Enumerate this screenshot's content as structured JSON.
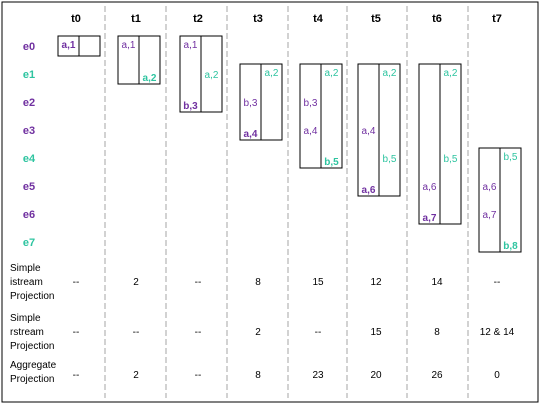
{
  "colors": {
    "purple": "#7030a0",
    "green": "#2ec4a0",
    "grid": "#a6a6a6",
    "border": "#000000"
  },
  "columns": [
    "t0",
    "t1",
    "t2",
    "t3",
    "t4",
    "t5",
    "t6",
    "t7"
  ],
  "events": [
    {
      "label": "e0",
      "color": "purple"
    },
    {
      "label": "e1",
      "color": "green"
    },
    {
      "label": "e2",
      "color": "purple"
    },
    {
      "label": "e3",
      "color": "purple"
    },
    {
      "label": "e4",
      "color": "green"
    },
    {
      "label": "e5",
      "color": "purple"
    },
    {
      "label": "e6",
      "color": "purple"
    },
    {
      "label": "e7",
      "color": "green"
    }
  ],
  "windows": [
    {
      "col": 0,
      "stream": "a",
      "start": 0,
      "end": 0,
      "entries": [
        {
          "event": 0,
          "text": "a,1",
          "bold": true
        }
      ]
    },
    {
      "col": 0,
      "stream": "b",
      "start": 0,
      "end": 0,
      "entries": []
    },
    {
      "col": 1,
      "stream": "a",
      "start": 0,
      "end": 1,
      "entries": [
        {
          "event": 0,
          "text": "a,1",
          "bold": false
        }
      ]
    },
    {
      "col": 1,
      "stream": "b",
      "start": 0,
      "end": 1,
      "entries": [
        {
          "event": 1,
          "text": "a,2",
          "bold": true
        }
      ]
    },
    {
      "col": 2,
      "stream": "a",
      "start": 0,
      "end": 2,
      "entries": [
        {
          "event": 0,
          "text": "a,1",
          "bold": false
        },
        {
          "event": 2,
          "text": "b,3",
          "bold": true
        }
      ]
    },
    {
      "col": 2,
      "stream": "b",
      "start": 0,
      "end": 2,
      "entries": [
        {
          "event": 1,
          "text": "a,2",
          "bold": false
        }
      ]
    },
    {
      "col": 3,
      "stream": "a",
      "start": 1,
      "end": 3,
      "entries": [
        {
          "event": 2,
          "text": "b,3",
          "bold": false
        },
        {
          "event": 3,
          "text": "a,4",
          "bold": true
        }
      ]
    },
    {
      "col": 3,
      "stream": "b",
      "start": 1,
      "end": 3,
      "entries": [
        {
          "event": 1,
          "text": "a,2",
          "bold": false
        }
      ]
    },
    {
      "col": 4,
      "stream": "a",
      "start": 1,
      "end": 4,
      "entries": [
        {
          "event": 2,
          "text": "b,3",
          "bold": false
        },
        {
          "event": 3,
          "text": "a,4",
          "bold": false
        }
      ]
    },
    {
      "col": 4,
      "stream": "b",
      "start": 1,
      "end": 4,
      "entries": [
        {
          "event": 1,
          "text": "a,2",
          "bold": false
        },
        {
          "event": 4,
          "text": "b,5",
          "bold": true
        }
      ]
    },
    {
      "col": 5,
      "stream": "a",
      "start": 1,
      "end": 5,
      "entries": [
        {
          "event": 3,
          "text": "a,4",
          "bold": false
        },
        {
          "event": 5,
          "text": "a,6",
          "bold": true
        }
      ]
    },
    {
      "col": 5,
      "stream": "b",
      "start": 1,
      "end": 5,
      "entries": [
        {
          "event": 1,
          "text": "a,2",
          "bold": false
        },
        {
          "event": 4,
          "text": "b,5",
          "bold": false
        }
      ]
    },
    {
      "col": 6,
      "stream": "a",
      "start": 1,
      "end": 6,
      "entries": [
        {
          "event": 5,
          "text": "a,6",
          "bold": false
        },
        {
          "event": 6,
          "text": "a,7",
          "bold": true
        }
      ]
    },
    {
      "col": 6,
      "stream": "b",
      "start": 1,
      "end": 6,
      "entries": [
        {
          "event": 1,
          "text": "a,2",
          "bold": false
        },
        {
          "event": 4,
          "text": "b,5",
          "bold": false
        }
      ]
    },
    {
      "col": 7,
      "stream": "a",
      "start": 4,
      "end": 7,
      "entries": [
        {
          "event": 5,
          "text": "a,6",
          "bold": false
        },
        {
          "event": 6,
          "text": "a,7",
          "bold": false
        }
      ]
    },
    {
      "col": 7,
      "stream": "b",
      "start": 4,
      "end": 7,
      "entries": [
        {
          "event": 4,
          "text": "b,5",
          "bold": false
        },
        {
          "event": 7,
          "text": "b,8",
          "bold": true
        }
      ]
    }
  ],
  "projections": [
    {
      "label": [
        "Simple",
        "istream",
        "Projection"
      ],
      "values": [
        "--",
        "2",
        "--",
        "8",
        "15",
        "12",
        "14",
        "--"
      ]
    },
    {
      "label": [
        "Simple",
        "rstream",
        "Projection"
      ],
      "values": [
        "--",
        "--",
        "--",
        "2",
        "--",
        "15",
        "8",
        "12 & 14"
      ]
    },
    {
      "label": [
        "Aggregate",
        "Projection"
      ],
      "values": [
        "--",
        "2",
        "--",
        "8",
        "23",
        "20",
        "26",
        "0"
      ]
    }
  ]
}
